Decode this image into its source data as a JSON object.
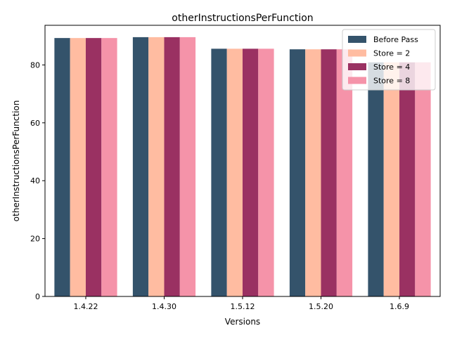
{
  "chart_data": {
    "type": "bar",
    "title": "otherInstructionsPerFunction",
    "xlabel": "Versions",
    "ylabel": "otherInstructionsPerFunction",
    "categories": [
      "1.4.22",
      "1.4.30",
      "1.5.12",
      "1.5.20",
      "1.6.9"
    ],
    "ylim": [
      0,
      93.7
    ],
    "yticks": [
      0,
      20,
      40,
      60,
      80
    ],
    "grid": false,
    "legend_position": "top-right",
    "series": [
      {
        "name": "Before Pass",
        "color": "#34536b",
        "values": [
          89.3,
          89.6,
          85.6,
          85.4,
          80.9
        ]
      },
      {
        "name": "Store = 2",
        "color": "#ffbca1",
        "values": [
          89.3,
          89.6,
          85.6,
          85.4,
          80.9
        ]
      },
      {
        "name": "Store = 4",
        "color": "#9a3162",
        "values": [
          89.3,
          89.6,
          85.6,
          85.4,
          80.9
        ]
      },
      {
        "name": "Store = 8",
        "color": "#f593a9",
        "values": [
          89.3,
          89.6,
          85.6,
          85.4,
          80.9
        ]
      }
    ]
  }
}
